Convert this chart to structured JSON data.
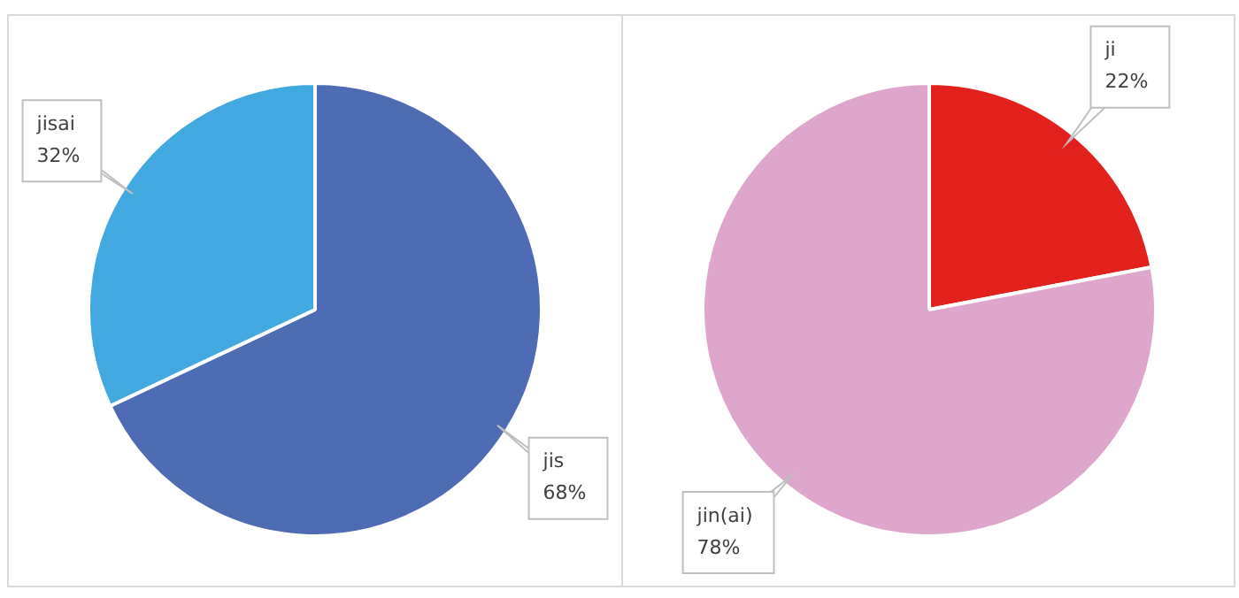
{
  "chart_data": [
    {
      "type": "pie",
      "categories": [
        "jis",
        "jisai"
      ],
      "values": [
        68,
        32
      ],
      "colors": [
        "#4e6cb3",
        "#42a8e0"
      ],
      "value_labels": [
        "68%",
        "32%"
      ],
      "legend": false
    },
    {
      "type": "pie",
      "categories": [
        "ji",
        "jin(ai)"
      ],
      "values": [
        22,
        78
      ],
      "colors": [
        "#e3211c",
        "#dea6cc"
      ],
      "value_labels": [
        "22%",
        "78%"
      ],
      "legend": false
    }
  ]
}
